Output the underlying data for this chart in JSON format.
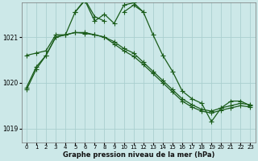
{
  "title": "Graphe pression niveau de la mer (hPa)",
  "background_color": "#cce8e8",
  "grid_color": "#aacfcf",
  "line_color": "#1a5c1a",
  "x_ticks": [
    0,
    1,
    2,
    3,
    4,
    5,
    6,
    7,
    8,
    9,
    10,
    11,
    12,
    13,
    14,
    15,
    16,
    17,
    18,
    19,
    20,
    21,
    22,
    23
  ],
  "y_ticks": [
    1019,
    1020,
    1021
  ],
  "ylim": [
    1018.7,
    1021.75
  ],
  "xlim": [
    -0.5,
    23.5
  ],
  "series_jagged": [
    1019.9,
    1020.35,
    1020.6,
    1021.0,
    1021.05,
    1021.55,
    1021.8,
    1021.35,
    1021.5,
    1021.3,
    1021.7,
    1021.75,
    1021.55,
    1021.05,
    1020.6,
    1020.25,
    1019.82,
    1019.65,
    1019.55,
    1019.15,
    1019.45,
    1019.6,
    1019.6,
    1019.5
  ],
  "series_flat1": [
    1020.6,
    1020.65,
    1020.7,
    1021.05,
    1021.05,
    1021.1,
    1021.1,
    1021.05,
    1021.0,
    1020.9,
    1020.75,
    1020.65,
    1020.45,
    1020.25,
    1020.05,
    1019.85,
    1019.65,
    1019.52,
    1019.42,
    1019.38,
    1019.45,
    1019.5,
    1019.55,
    1019.52
  ],
  "series_flat2": [
    1019.85,
    1020.3,
    1020.6,
    1021.0,
    1021.05,
    1021.1,
    1021.08,
    1021.05,
    1021.0,
    1020.85,
    1020.7,
    1020.58,
    1020.4,
    1020.2,
    1020.0,
    1019.8,
    1019.6,
    1019.47,
    1019.38,
    1019.34,
    1019.4,
    1019.45,
    1019.5,
    1019.47
  ],
  "series_top_x": [
    5,
    6,
    7,
    8,
    10,
    11,
    12
  ],
  "series_top_y": [
    1021.55,
    1021.82,
    1021.45,
    1021.35,
    1021.55,
    1021.7,
    1021.55
  ],
  "marker": "+",
  "markersize": 4,
  "linewidth": 0.9
}
